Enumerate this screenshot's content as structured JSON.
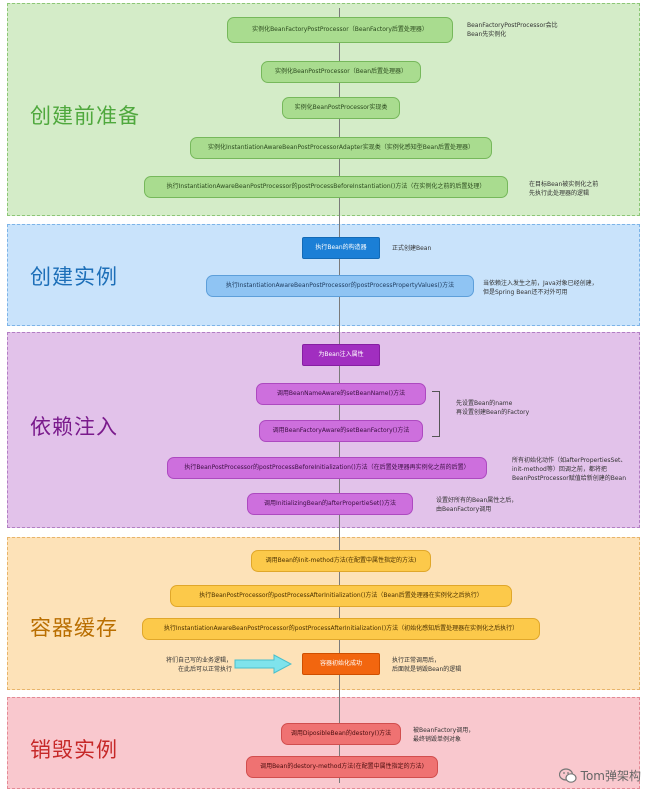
{
  "sections": {
    "s1": {
      "title": "创建前准备",
      "color": "#4fa83d"
    },
    "s2": {
      "title": "创建实例",
      "color": "#1d6fb8"
    },
    "s3": {
      "title": "依赖注入",
      "color": "#7a1a8c"
    },
    "s4": {
      "title": "容器缓存",
      "color": "#b96e00"
    },
    "s5": {
      "title": "销毁实例",
      "color": "#c62828"
    }
  },
  "nodes": {
    "n1": "实例化BeanFactoryPostProcessor（BeanFactory后置处理器）",
    "n2": "实例化BeanPostProcessor（Bean后置处理器）",
    "n3": "实例化BeanPostProcessor实现类",
    "n4": "实例化InstantiationAwareBeanPostProcessorAdapter实现类（实例化感知型Bean后置处理器）",
    "n5": "执行InstantiationAwareBeanPostProcessor的postProcessBeforeInstantiation()方法（在实例化之前的后置处理）",
    "n6": "执行Bean的构造器",
    "n7": "执行InstantiationAwareBeanPostProcessor的postProcessPropertyValues()方法",
    "n8": "为Bean注入属性",
    "n9": "调用BeanNameAware的setBeanName()方法",
    "n10": "调用BeanFactoryAware的setBeanFactory()方法",
    "n11": "执行BeanPostProcessor的postProcessBeforeInitialization()方法（在后置处理器再实例化之前的后置）",
    "n12": "调用InitializingBean的afterPropertieSet()方法",
    "n13": "调用Bean的init-method方法(在配置中属性指定的方法)",
    "n14": "执行BeanPostProcessor的postProcessAfterInitialization()方法（Bean后置处理器在实例化之后执行）",
    "n15": "执行InstantiationAwareBeanPostProcessor的postProcessAfterInitialization()方法（初始化感知后置处理器在实例化之后执行）",
    "n16": "容器初始化成功",
    "n17": "调用DiposibleBean的destory()方法",
    "n18": "调用Bean的destory-method方法(在配置中属性指定的方法)"
  },
  "notes": {
    "a1": "BeanFactoryPostProcessor会比",
    "a2": "Bean先实例化",
    "b1": "在目标Bean被实例化之前",
    "b2": "先执行此处理器的逻辑",
    "c1": "正式创建Bean",
    "d1": "当依赖注入发生之前，Java对象已经创建，",
    "d2": "但是Spring Bean还不对外可用",
    "e1": "先设置Bean的name",
    "e2": "再设置创建Bean的Factory",
    "f1": "所有初始化动作（如afterPropertiesSet、",
    "f2": "init-method等）回调之前，都将把",
    "f3": "BeanPostProcessor赋值给新创建的Bean",
    "g1": "设置好所有的Bean属性之后，",
    "g2": "由BeanFactory调用",
    "h1": "执行正常调用后，",
    "h2": "后面就是销毁Bean的逻辑",
    "i1": "将们自己写的业务逻辑，",
    "i2": "在此后可以正常执行",
    "j1": "被BeanFactory调用，",
    "j2": "最终销毁单例对象"
  },
  "watermark": "Tom弹架构"
}
